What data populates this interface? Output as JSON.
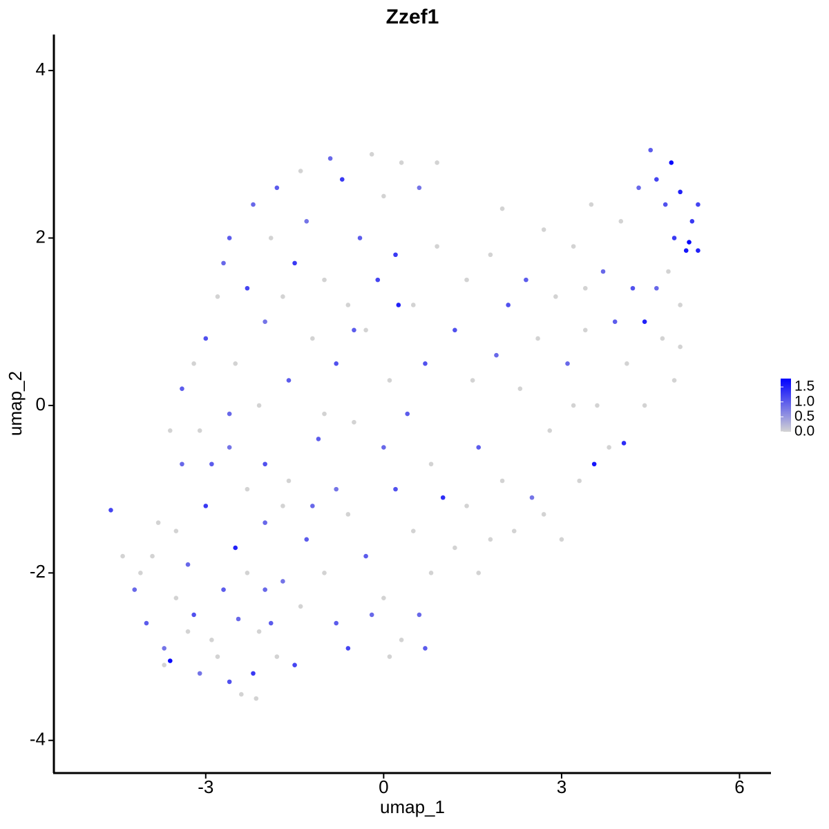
{
  "chart_data": {
    "type": "scatter",
    "title": "Zzef1",
    "x_label": "umap_1",
    "y_label": "umap_2",
    "xlim": [
      -5.56,
      6.53
    ],
    "ylim": [
      -4.39,
      4.43
    ],
    "xticks": [
      -3,
      0,
      3,
      6
    ],
    "yticks": [
      -4,
      -2,
      0,
      2,
      4
    ],
    "grid": false,
    "legend_position": "right",
    "colors": [
      "#d3d3d3",
      "#0000ff"
    ],
    "color_range": [
      0,
      1.78
    ],
    "legend_ticks": [
      {
        "value": 0,
        "label": "0.0"
      },
      0.5,
      {
        "value": 1,
        "label": "1.0"
      },
      1.5
    ],
    "x": [
      -4.6,
      -4.2,
      -4.0,
      -3.9,
      -3.7,
      -3.6,
      -3.5,
      -3.3,
      -3.2,
      -3.1,
      -3.0,
      -2.9,
      -2.8,
      -2.7,
      -2.6,
      -2.5,
      -2.45,
      -2.4,
      -2.3,
      -2.2,
      -2.1,
      -2.0,
      -1.9,
      -1.8,
      -1.7,
      -1.5,
      -1.4,
      -1.3,
      -3.8,
      -3.4,
      -3.1,
      -2.9,
      -2.6,
      -2.3,
      -2.0,
      -1.6,
      -1.2,
      -3.5,
      -4.1,
      -3.3,
      -2.0,
      -1.7,
      -1.0,
      -0.8,
      -0.6,
      -4.4,
      -3.7,
      -2.15,
      -3.6,
      -3.4,
      -3.2,
      -3.0,
      -2.8,
      -2.7,
      -2.6,
      -2.5,
      -2.3,
      -2.2,
      -2.1,
      -2.0,
      -1.9,
      -1.8,
      -1.7,
      -1.6,
      -1.5,
      -1.4,
      -1.3,
      -1.2,
      -1.1,
      -1.0,
      -0.9,
      -0.8,
      -0.7,
      -0.6,
      -0.5,
      -0.4,
      -0.3,
      -0.2,
      -0.1,
      0.0,
      0.0,
      0.1,
      0.2,
      0.3,
      0.4,
      0.5,
      0.6,
      0.7,
      0.8,
      0.9,
      -0.5,
      -1.0,
      -2.6,
      0.25,
      -0.6,
      -0.3,
      0.0,
      0.2,
      0.3,
      0.5,
      0.6,
      0.8,
      1.0,
      1.2,
      -0.8,
      0.1,
      0.7,
      1.4,
      1.6,
      -0.2,
      1.2,
      1.4,
      1.5,
      1.6,
      1.8,
      1.9,
      2.0,
      2.1,
      2.2,
      2.3,
      2.4,
      2.5,
      2.6,
      2.7,
      2.8,
      2.9,
      3.0,
      3.1,
      3.2,
      3.3,
      3.4,
      3.5,
      3.55,
      3.6,
      3.7,
      3.8,
      3.9,
      4.0,
      4.05,
      4.1,
      4.2,
      4.3,
      4.4,
      4.4,
      4.5,
      4.6,
      4.7,
      4.75,
      4.8,
      4.85,
      4.9,
      5.0,
      5.0,
      5.1,
      5.15,
      5.2,
      5.3,
      5.3,
      5.0,
      4.9,
      3.2,
      2.0,
      2.7,
      1.8,
      3.4,
      0.9,
      4.6
    ],
    "y": [
      -1.25,
      -2.2,
      -2.6,
      -1.8,
      -2.9,
      -3.05,
      -2.3,
      -1.9,
      -2.5,
      -3.2,
      -1.2,
      -2.8,
      -3.0,
      -2.2,
      -3.3,
      -1.7,
      -2.55,
      -3.45,
      -2.0,
      -3.2,
      -2.7,
      -1.4,
      -2.6,
      -3.0,
      -2.1,
      -3.1,
      -2.4,
      -1.6,
      -1.4,
      -0.7,
      -0.3,
      -0.7,
      -0.5,
      -1.0,
      -0.7,
      -0.9,
      -1.2,
      -1.5,
      -2.0,
      -2.7,
      -2.2,
      -1.2,
      -2.0,
      -2.6,
      -2.9,
      -1.8,
      -3.1,
      -3.5,
      -0.3,
      0.2,
      0.5,
      0.8,
      1.3,
      1.7,
      2.0,
      0.5,
      1.4,
      2.4,
      0.0,
      1.0,
      2.0,
      2.6,
      1.3,
      0.3,
      1.7,
      2.8,
      2.2,
      0.8,
      -0.4,
      1.5,
      2.95,
      0.5,
      2.7,
      1.2,
      -0.2,
      2.0,
      0.9,
      3.0,
      1.5,
      -0.5,
      2.5,
      0.3,
      1.8,
      2.9,
      -0.1,
      1.2,
      2.6,
      0.5,
      -0.7,
      1.9,
      0.9,
      -0.1,
      -0.1,
      1.2,
      -1.3,
      -1.8,
      -2.3,
      -1.0,
      -2.8,
      -1.5,
      -2.5,
      -2.0,
      -1.1,
      -1.7,
      -1.0,
      -3.0,
      -2.9,
      -1.2,
      -2.0,
      -2.5,
      0.9,
      1.5,
      0.3,
      -0.5,
      1.8,
      0.6,
      -0.9,
      1.2,
      -1.5,
      0.2,
      1.5,
      -1.1,
      0.8,
      2.1,
      -0.3,
      1.3,
      -1.6,
      0.5,
      1.9,
      -0.9,
      0.9,
      2.4,
      -0.7,
      0.0,
      1.6,
      -0.5,
      1.0,
      2.2,
      -0.45,
      0.5,
      1.4,
      2.6,
      0.0,
      1.0,
      3.05,
      2.7,
      0.8,
      2.4,
      1.6,
      2.9,
      2.0,
      1.2,
      2.55,
      1.85,
      1.95,
      2.2,
      2.4,
      1.85,
      0.7,
      0.3,
      0.0,
      2.35,
      -1.3,
      -1.6,
      1.4,
      2.9,
      1.4
    ],
    "values": [
      1.2,
      0.9,
      1.0,
      0,
      0.8,
      1.7,
      0,
      0.9,
      1.1,
      0.8,
      1.3,
      0,
      0,
      1.0,
      1.1,
      1.5,
      0.9,
      0,
      0,
      1.3,
      0,
      0.9,
      1.0,
      0,
      0.8,
      1.2,
      0,
      1.0,
      0,
      0.9,
      0,
      1.0,
      0.8,
      0,
      1.1,
      0,
      0.9,
      0,
      0,
      0,
      0.9,
      0,
      0,
      1.0,
      1.2,
      0,
      0,
      0,
      0,
      1.0,
      0,
      1.1,
      0,
      0.9,
      1.0,
      0,
      1.2,
      0.9,
      0,
      0.8,
      0,
      1.0,
      0,
      1.0,
      1.3,
      0,
      0.8,
      0,
      1.0,
      0,
      0.9,
      1.1,
      1.3,
      0,
      0,
      1.0,
      0,
      0,
      1.2,
      0.9,
      0,
      0,
      1.3,
      0,
      1.0,
      0,
      0.8,
      1.1,
      0,
      0,
      1.0,
      0,
      0.9,
      1.5,
      0,
      1.0,
      0,
      1.1,
      0,
      0,
      0.9,
      0,
      1.4,
      0,
      0.8,
      0,
      1.0,
      0,
      0,
      0.9,
      1.1,
      0,
      0,
      1.0,
      0,
      0.9,
      0,
      1.1,
      0,
      0,
      1.0,
      0.8,
      0,
      0,
      0,
      0,
      0,
      0.9,
      0,
      0,
      0,
      0,
      1.6,
      0,
      0.9,
      0,
      1.0,
      0,
      1.4,
      0,
      1.1,
      0.9,
      0,
      1.5,
      1.0,
      1.2,
      0,
      1.1,
      0,
      1.7,
      1.3,
      0,
      1.5,
      1.6,
      1.7,
      1.3,
      1.2,
      1.5,
      0,
      0,
      0,
      0,
      0,
      0,
      0,
      0,
      0.9
    ]
  }
}
